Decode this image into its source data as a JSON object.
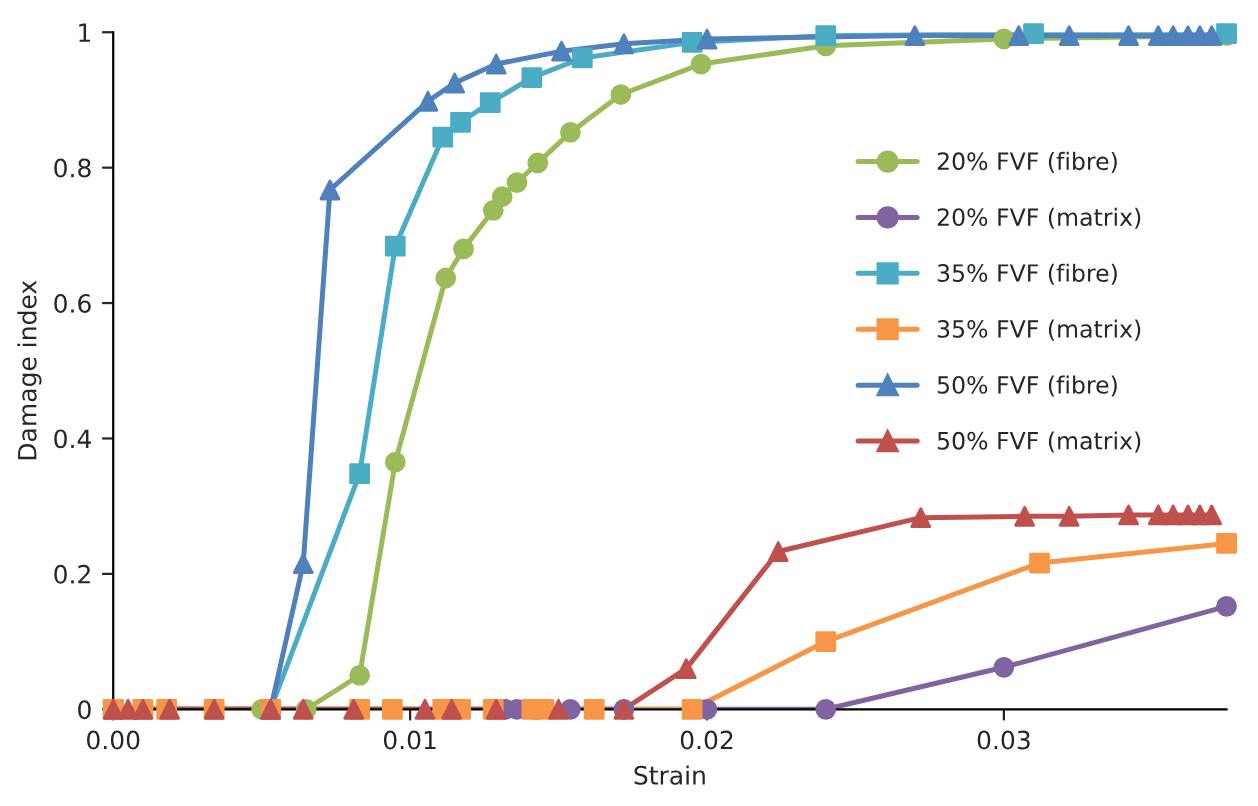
{
  "chart_data": {
    "type": "line",
    "xlabel": "Strain",
    "ylabel": "Damage index",
    "xlim": [
      0,
      0.0375
    ],
    "ylim": [
      0,
      1
    ],
    "xticks": [
      {
        "value": 0,
        "label": "0.00"
      },
      {
        "value": 0.01,
        "label": "0.01"
      },
      {
        "value": 0.02,
        "label": "0.02"
      },
      {
        "value": 0.03,
        "label": "0.03"
      }
    ],
    "yticks": [
      0,
      0.2,
      0.4,
      0.6,
      0.8,
      1
    ],
    "grid": false,
    "legend": "right",
    "series": [
      {
        "name": "20% FVF (fibre)",
        "color": "#9bbb59",
        "marker": "circle",
        "x": [
          0,
          0.005,
          0.0065,
          0.0083,
          0.0095,
          0.0112,
          0.0118,
          0.0128,
          0.0131,
          0.0136,
          0.0143,
          0.0154,
          0.0171,
          0.0198,
          0.024,
          0.03,
          0.0375
        ],
        "values": [
          0,
          0,
          0,
          0.05,
          0.365,
          0.637,
          0.68,
          0.737,
          0.757,
          0.778,
          0.807,
          0.852,
          0.908,
          0.953,
          0.98,
          0.99,
          0.995
        ]
      },
      {
        "name": "20% FVF (matrix)",
        "color": "#8064a2",
        "marker": "circle",
        "x": [
          0,
          0.0132,
          0.0136,
          0.0142,
          0.0154,
          0.0172,
          0.02,
          0.024,
          0.03,
          0.0375
        ],
        "values": [
          0,
          0,
          0,
          0,
          0,
          0,
          0,
          0,
          0.062,
          0.152
        ]
      },
      {
        "name": "35% FVF (fibre)",
        "color": "#4bacc6",
        "marker": "square",
        "x": [
          0,
          0.0053,
          0.0083,
          0.0095,
          0.0111,
          0.0117,
          0.0127,
          0.0141,
          0.0158,
          0.0195,
          0.024,
          0.031,
          0.0375
        ],
        "values": [
          0,
          0,
          0.348,
          0.684,
          0.845,
          0.867,
          0.896,
          0.933,
          0.962,
          0.985,
          0.995,
          0.998,
          0.998
        ]
      },
      {
        "name": "35% FVF (matrix)",
        "color": "#f79646",
        "marker": "square",
        "x": [
          0,
          0.001,
          0.0018,
          0.0034,
          0.0053,
          0.0083,
          0.0094,
          0.0111,
          0.0117,
          0.0128,
          0.0141,
          0.0145,
          0.0162,
          0.0195,
          0.024,
          0.0312,
          0.0375
        ],
        "values": [
          0,
          0,
          0,
          0,
          0,
          0,
          0,
          0,
          0,
          0,
          0,
          0,
          0,
          0,
          0.1,
          0.216,
          0.245
        ]
      },
      {
        "name": "50% FVF (fibre)",
        "color": "#4f81bd",
        "marker": "triangle",
        "x": [
          0.0053,
          0.0064,
          0.0073,
          0.0106,
          0.0115,
          0.0129,
          0.0151,
          0.0172,
          0.02,
          0.027,
          0.0305,
          0.0322,
          0.0342,
          0.0352,
          0.0357,
          0.0362,
          0.0366,
          0.037
        ],
        "values": [
          0,
          0.215,
          0.767,
          0.898,
          0.925,
          0.953,
          0.972,
          0.983,
          0.99,
          0.995,
          0.995,
          0.995,
          0.995,
          0.995,
          0.995,
          0.995,
          0.995,
          0.995
        ]
      },
      {
        "name": "50% FVF (matrix)",
        "color": "#c0504d",
        "marker": "triangle",
        "x": [
          0,
          0.0005,
          0.001,
          0.0019,
          0.0034,
          0.0053,
          0.0064,
          0.0081,
          0.0105,
          0.0114,
          0.0129,
          0.015,
          0.0172,
          0.0193,
          0.0224,
          0.0272,
          0.0307,
          0.0322,
          0.0342,
          0.0352,
          0.0357,
          0.0362,
          0.0366,
          0.037
        ],
        "values": [
          0,
          0,
          0,
          0,
          0,
          0,
          0,
          0,
          0,
          0,
          0,
          0,
          0,
          0.06,
          0.233,
          0.283,
          0.285,
          0.285,
          0.287,
          0.287,
          0.287,
          0.287,
          0.287,
          0.287
        ]
      }
    ]
  }
}
